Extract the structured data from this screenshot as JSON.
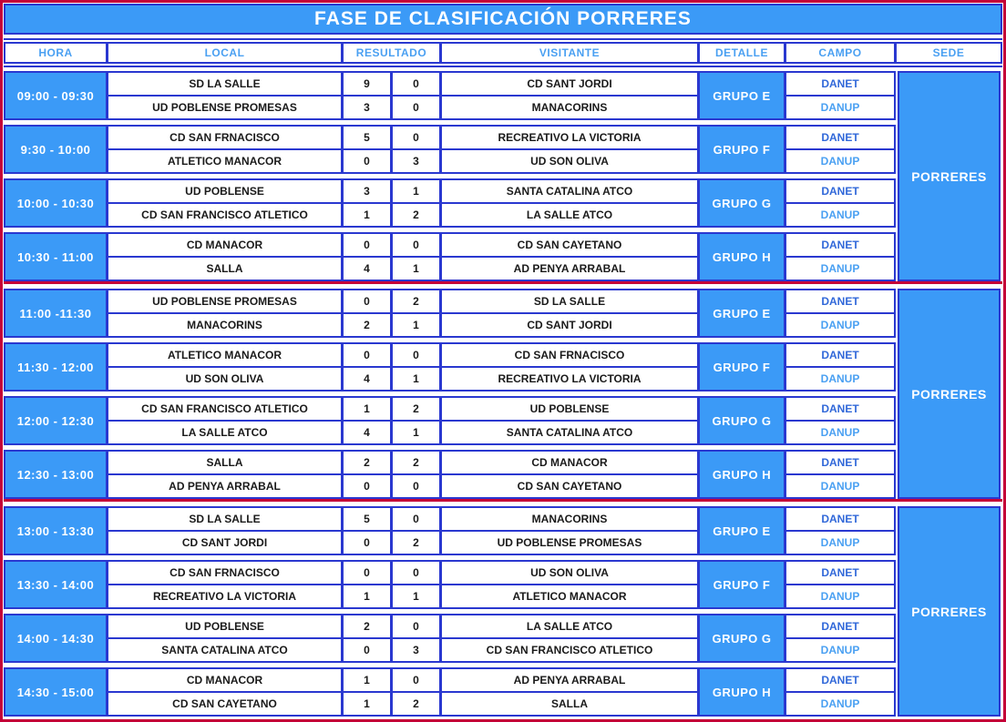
{
  "title": "FASE DE CLASIFICACIÓN PORRERES",
  "columns": [
    "HORA",
    "LOCAL",
    "RESULTADO",
    "VISITANTE",
    "DETALLE",
    "CAMPO",
    "SEDE"
  ],
  "colors": {
    "outer_border_red": "#c40038",
    "grid_border_blue": "#2a38d0",
    "fill_blue": "#3b9af7",
    "header_text_blue": "#4aa0f2",
    "danet_text_blue": "#3168d9",
    "danup_text_blue": "#4aa0f2",
    "team_text": "#1a1a1a"
  },
  "groups": [
    {
      "sede": "PORRERES",
      "blocks": [
        {
          "time": "09:00 - 09:30",
          "grupo": "GRUPO E",
          "campo": [
            "DANET",
            "DANUP"
          ],
          "matches": [
            {
              "local": "SD LA SALLE",
              "home": "9",
              "away": "0",
              "visitante": "CD SANT JORDI"
            },
            {
              "local": "UD POBLENSE PROMESAS",
              "home": "3",
              "away": "0",
              "visitante": "MANACORINS"
            }
          ]
        },
        {
          "time": "9:30 - 10:00",
          "grupo": "GRUPO F",
          "campo": [
            "DANET",
            "DANUP"
          ],
          "matches": [
            {
              "local": "CD SAN FRNACISCO",
              "home": "5",
              "away": "0",
              "visitante": "RECREATIVO LA VICTORIA"
            },
            {
              "local": "ATLETICO MANACOR",
              "home": "0",
              "away": "3",
              "visitante": "UD SON OLIVA"
            }
          ]
        },
        {
          "time": "10:00 - 10:30",
          "grupo": "GRUPO G",
          "campo": [
            "DANET",
            "DANUP"
          ],
          "matches": [
            {
              "local": "UD POBLENSE",
              "home": "3",
              "away": "1",
              "visitante": "SANTA CATALINA ATCO"
            },
            {
              "local": "CD SAN FRANCISCO ATLETICO",
              "home": "1",
              "away": "2",
              "visitante": "LA SALLE ATCO"
            }
          ]
        },
        {
          "time": "10:30 - 11:00",
          "grupo": "GRUPO H",
          "campo": [
            "DANET",
            "DANUP"
          ],
          "matches": [
            {
              "local": "CD MANACOR",
              "home": "0",
              "away": "0",
              "visitante": "CD SAN CAYETANO"
            },
            {
              "local": "SALLA",
              "home": "4",
              "away": "1",
              "visitante": "AD PENYA ARRABAL"
            }
          ]
        }
      ]
    },
    {
      "sede": "PORRERES",
      "blocks": [
        {
          "time": "11:00 -11:30",
          "grupo": "GRUPO E",
          "campo": [
            "DANET",
            "DANUP"
          ],
          "matches": [
            {
              "local": "UD POBLENSE PROMESAS",
              "home": "0",
              "away": "2",
              "visitante": "SD LA SALLE"
            },
            {
              "local": "MANACORINS",
              "home": "2",
              "away": "1",
              "visitante": "CD SANT JORDI"
            }
          ]
        },
        {
          "time": "11:30 - 12:00",
          "grupo": "GRUPO F",
          "campo": [
            "DANET",
            "DANUP"
          ],
          "matches": [
            {
              "local": "ATLETICO MANACOR",
              "home": "0",
              "away": "0",
              "visitante": "CD SAN FRNACISCO"
            },
            {
              "local": "UD SON OLIVA",
              "home": "4",
              "away": "1",
              "visitante": "RECREATIVO LA VICTORIA"
            }
          ]
        },
        {
          "time": "12:00 - 12:30",
          "grupo": "GRUPO G",
          "campo": [
            "DANET",
            "DANUP"
          ],
          "matches": [
            {
              "local": "CD SAN FRANCISCO ATLETICO",
              "home": "1",
              "away": "2",
              "visitante": "UD POBLENSE"
            },
            {
              "local": "LA SALLE ATCO",
              "home": "4",
              "away": "1",
              "visitante": "SANTA CATALINA ATCO"
            }
          ]
        },
        {
          "time": "12:30 - 13:00",
          "grupo": "GRUPO H",
          "campo": [
            "DANET",
            "DANUP"
          ],
          "matches": [
            {
              "local": "SALLA",
              "home": "2",
              "away": "2",
              "visitante": "CD MANACOR"
            },
            {
              "local": "AD PENYA ARRABAL",
              "home": "0",
              "away": "0",
              "visitante": "CD SAN CAYETANO"
            }
          ]
        }
      ]
    },
    {
      "sede": "PORRERES",
      "blocks": [
        {
          "time": "13:00 - 13:30",
          "grupo": "GRUPO E",
          "campo": [
            "DANET",
            "DANUP"
          ],
          "matches": [
            {
              "local": "SD LA SALLE",
              "home": "5",
              "away": "0",
              "visitante": "MANACORINS"
            },
            {
              "local": "CD SANT JORDI",
              "home": "0",
              "away": "2",
              "visitante": "UD POBLENSE PROMESAS"
            }
          ]
        },
        {
          "time": "13:30 - 14:00",
          "grupo": "GRUPO F",
          "campo": [
            "DANET",
            "DANUP"
          ],
          "matches": [
            {
              "local": "CD SAN FRNACISCO",
              "home": "0",
              "away": "0",
              "visitante": "UD SON OLIVA"
            },
            {
              "local": "RECREATIVO LA VICTORIA",
              "home": "1",
              "away": "1",
              "visitante": "ATLETICO MANACOR"
            }
          ]
        },
        {
          "time": "14:00 - 14:30",
          "grupo": "GRUPO G",
          "campo": [
            "DANET",
            "DANUP"
          ],
          "matches": [
            {
              "local": "UD POBLENSE",
              "home": "2",
              "away": "0",
              "visitante": "LA SALLE ATCO"
            },
            {
              "local": "SANTA CATALINA ATCO",
              "home": "0",
              "away": "3",
              "visitante": "CD SAN FRANCISCO ATLETICO"
            }
          ]
        },
        {
          "time": "14:30 - 15:00",
          "grupo": "GRUPO H",
          "campo": [
            "DANET",
            "DANUP"
          ],
          "matches": [
            {
              "local": "CD MANACOR",
              "home": "1",
              "away": "0",
              "visitante": "AD PENYA ARRABAL"
            },
            {
              "local": "CD SAN CAYETANO",
              "home": "1",
              "away": "2",
              "visitante": "SALLA"
            }
          ]
        }
      ]
    }
  ]
}
